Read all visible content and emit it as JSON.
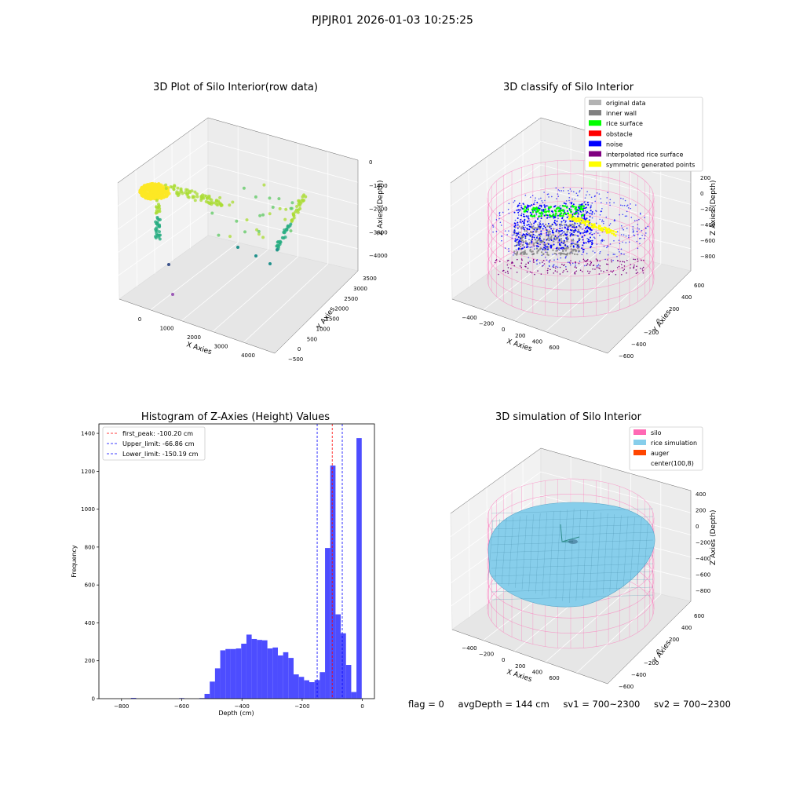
{
  "figure_title": "PJPJR01 2026-01-03 10:25:25",
  "footer": {
    "flag": "flag = 0",
    "avg_depth": "avgDepth = 144 cm",
    "sv1": "sv1 = 700~2300",
    "sv2": "sv2 = 700~2300"
  },
  "colors": {
    "original": "#b3b3b3",
    "inner_wall": "#808080",
    "rice_surface": "#00ff00",
    "obstacle": "#ff0000",
    "noise": "#0000ff",
    "interpolated": "#800080",
    "symmetric": "#ffff00",
    "silo": "#ff69b4",
    "rice_sim": "#87ceeb",
    "auger": "#ff4500",
    "hist_bar": "#4d4dff"
  },
  "chart_data": [
    {
      "type": "scatter",
      "title": "3D Plot of Silo Interior(row data)",
      "xlabel": "X Axies",
      "ylabel": "Y Axies",
      "zlabel": "Z Axies (Depth)",
      "x_ticks": [
        "0",
        "1000",
        "2000",
        "3000",
        "4000"
      ],
      "y_ticks": [
        "−500",
        "0",
        "500",
        "1000",
        "1500",
        "2000",
        "2500",
        "3000",
        "3500"
      ],
      "z_ticks": [
        "−4000",
        "−3000",
        "−2000",
        "−1000",
        "0"
      ],
      "colormap": "viridis"
    },
    {
      "type": "scatter",
      "title": "3D classify of Silo Interior",
      "xlabel": "X Axies",
      "ylabel": "Y Axies",
      "zlabel": "Z Axies (Depth)",
      "x_ticks": [
        "−400",
        "−200",
        "0",
        "200",
        "400",
        "600"
      ],
      "y_ticks": [
        "−600",
        "−400",
        "−200",
        "0",
        "200",
        "400",
        "600"
      ],
      "z_ticks": [
        "−800",
        "−600",
        "−400",
        "−200",
        "0",
        "200"
      ],
      "legend": [
        "original data",
        "inner wall",
        "rice surface",
        "obstacle",
        "noise",
        "interpolated rice surface",
        "symmetric generated points"
      ],
      "legend_position": "top-right"
    },
    {
      "type": "bar",
      "title": "Histogram of Z-Axies (Height) Values",
      "xlabel": "Depth (cm)",
      "ylabel": "Frequency",
      "xlim": [
        -875,
        40
      ],
      "ylim": [
        0,
        1450
      ],
      "x_ticks": [
        -800,
        -600,
        -400,
        -200,
        0
      ],
      "y_ticks": [
        0,
        200,
        400,
        600,
        800,
        1000,
        1200,
        1400
      ],
      "bin_width": 17.4,
      "bins": [
        {
          "x": -760,
          "y": 4
        },
        {
          "x": -600,
          "y": 3
        },
        {
          "x": -533,
          "y": 3
        },
        {
          "x": -515.6,
          "y": 25
        },
        {
          "x": -498.2,
          "y": 90
        },
        {
          "x": -480.8,
          "y": 160
        },
        {
          "x": -463.4,
          "y": 255
        },
        {
          "x": -446,
          "y": 262
        },
        {
          "x": -428.6,
          "y": 262
        },
        {
          "x": -411.2,
          "y": 265
        },
        {
          "x": -393.8,
          "y": 290
        },
        {
          "x": -376.4,
          "y": 338
        },
        {
          "x": -359,
          "y": 315
        },
        {
          "x": -341.6,
          "y": 310
        },
        {
          "x": -324.2,
          "y": 308
        },
        {
          "x": -306.8,
          "y": 265
        },
        {
          "x": -289.4,
          "y": 270
        },
        {
          "x": -272,
          "y": 228
        },
        {
          "x": -254.6,
          "y": 245
        },
        {
          "x": -237.2,
          "y": 215
        },
        {
          "x": -219.8,
          "y": 128
        },
        {
          "x": -202.4,
          "y": 115
        },
        {
          "x": -185,
          "y": 97
        },
        {
          "x": -167.6,
          "y": 87
        },
        {
          "x": -150.2,
          "y": 98
        },
        {
          "x": -132.8,
          "y": 140
        },
        {
          "x": -115.4,
          "y": 795
        },
        {
          "x": -98,
          "y": 1230
        },
        {
          "x": -80.6,
          "y": 445
        },
        {
          "x": -63.2,
          "y": 345
        },
        {
          "x": -45.8,
          "y": 178
        },
        {
          "x": -28.4,
          "y": 35
        },
        {
          "x": -11,
          "y": 1375
        }
      ],
      "vlines": [
        {
          "label": "first_peak: -100.20 cm",
          "x": -100.2,
          "color": "#ff0000"
        },
        {
          "label": "Upper_limit: -66.86 cm",
          "x": -66.86,
          "color": "#0000ff"
        },
        {
          "label": "Lower_limit: -150.19 cm",
          "x": -150.19,
          "color": "#0000ff"
        }
      ],
      "legend_position": "top-left"
    },
    {
      "type": "area",
      "title": "3D simulation of Silo Interior",
      "xlabel": "X Axies",
      "ylabel": "Y Axies",
      "zlabel": "Z Axies (Depth)",
      "x_ticks": [
        "−400",
        "−200",
        "0",
        "200",
        "400",
        "600"
      ],
      "y_ticks": [
        "−600",
        "−400",
        "−200",
        "0",
        "200",
        "400",
        "600"
      ],
      "z_ticks": [
        "−800",
        "−600",
        "−400",
        "−200",
        "0",
        "200",
        "400"
      ],
      "legend": [
        "silo",
        "rice simulation",
        "auger",
        "center(100,8)"
      ],
      "legend_position": "top-right"
    }
  ]
}
